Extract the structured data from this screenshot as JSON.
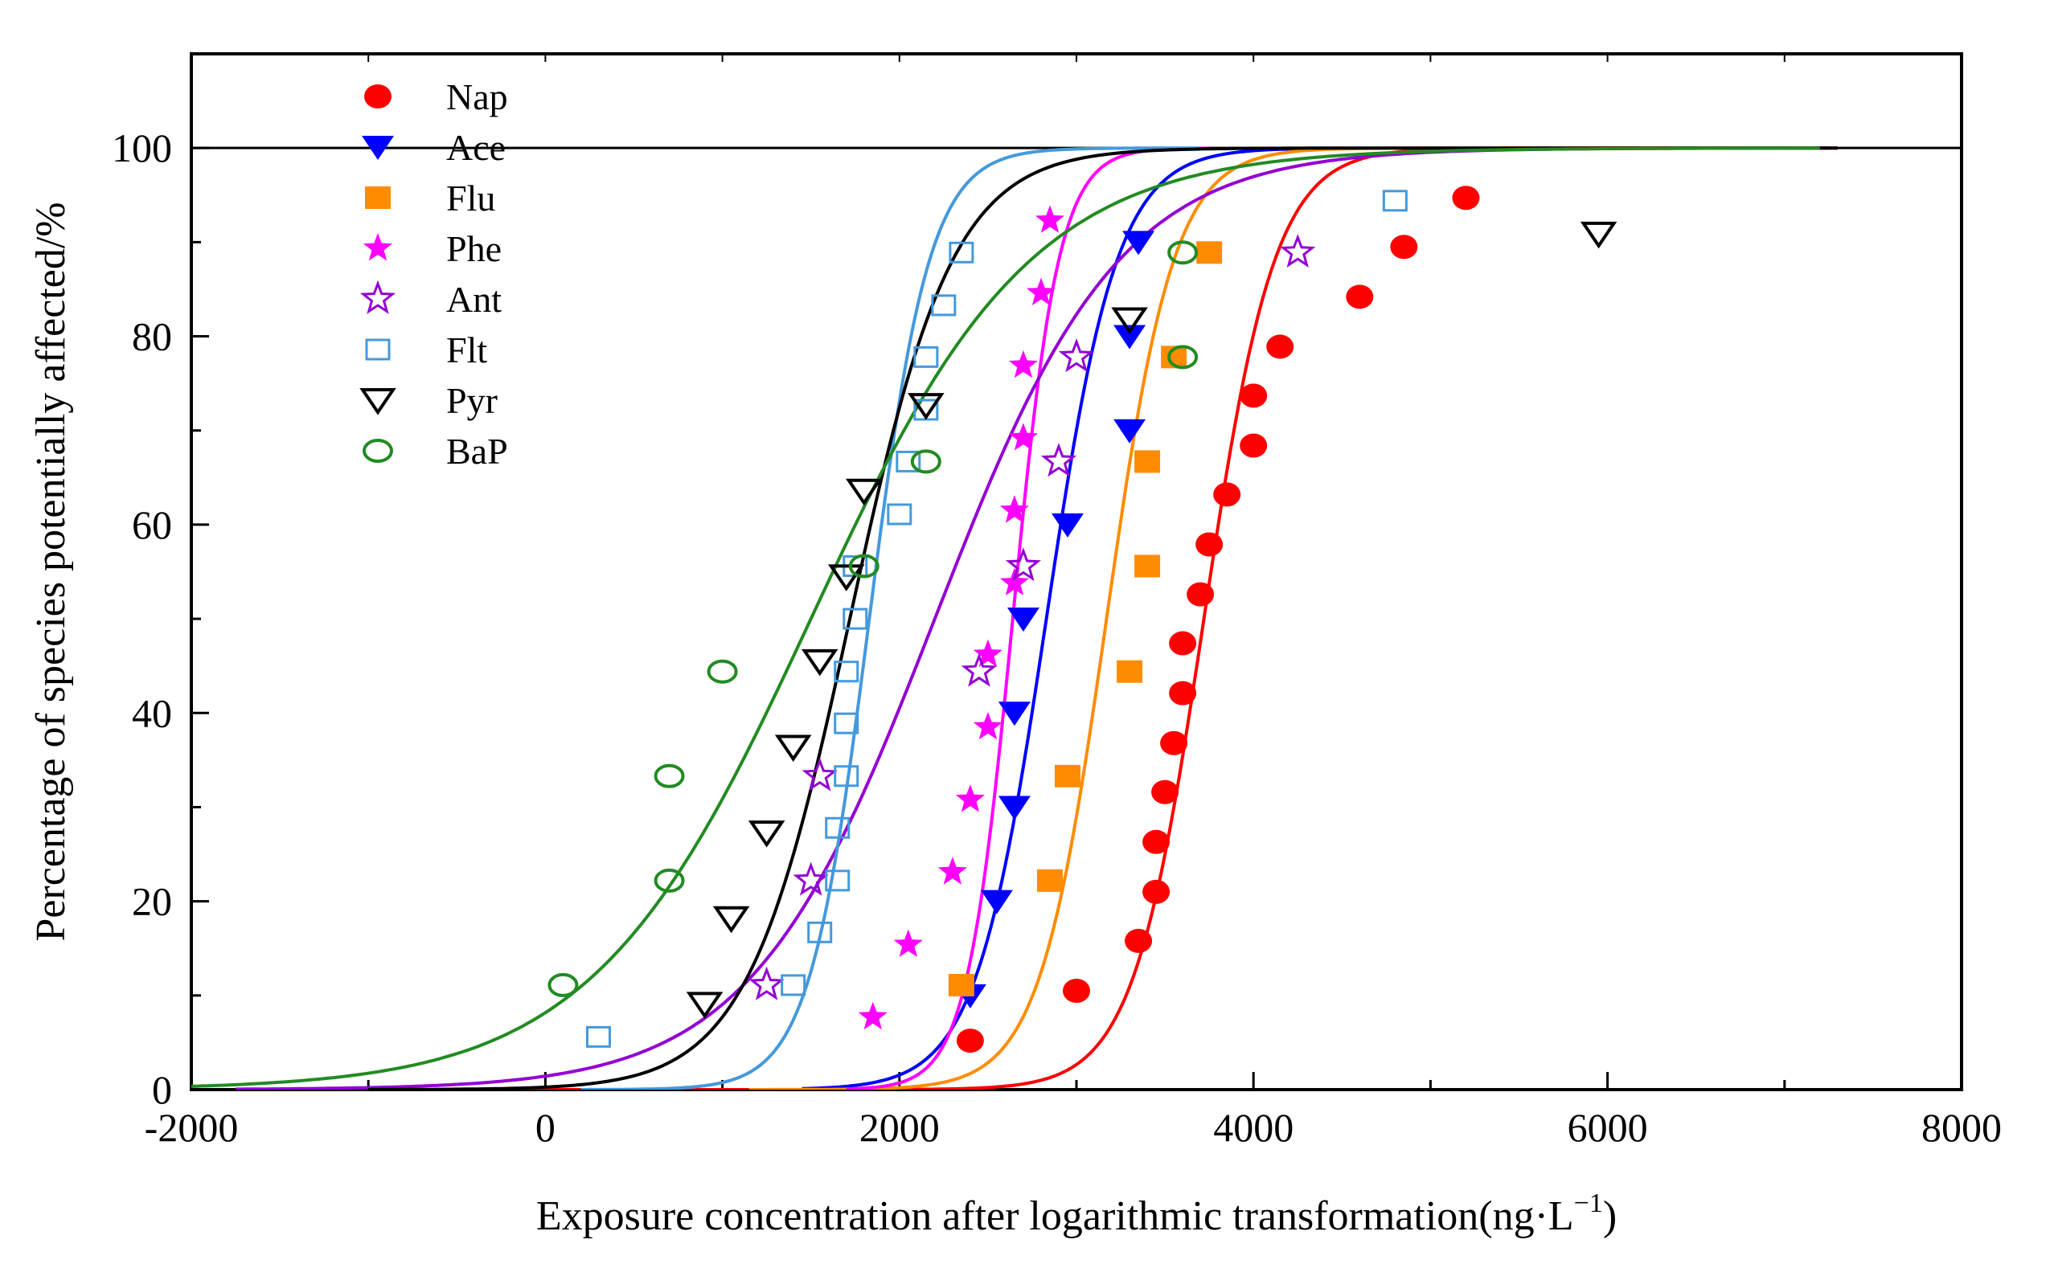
{
  "chart_data": {
    "type": "scatter",
    "title": "",
    "xlabel": "Exposure concentration after logarithmic transformation(ng·L",
    "xlabel_sup": "−1",
    "xlabel_close": ")",
    "ylabel": "Percentage of species potentially affected/%",
    "xlim": [
      -2000,
      8000
    ],
    "ylim": [
      0,
      110
    ],
    "x_ticks": [
      -2000,
      0,
      2000,
      4000,
      6000,
      8000
    ],
    "x_tick_labels": [
      "-2000",
      "0",
      "2000",
      "4000",
      "6000",
      "8000"
    ],
    "y_ticks": [
      0,
      20,
      40,
      60,
      80,
      100
    ],
    "y_tick_labels": [
      "0",
      "20",
      "40",
      "60",
      "80",
      "100"
    ],
    "reference_line_y": 100,
    "legend_position": "top-left",
    "series": [
      {
        "name": "Nap",
        "color": "#ff0000",
        "marker": "filled-circle",
        "fit": {
          "mu": 3720,
          "s": 200,
          "xmin": -500,
          "xmax": 7300
        },
        "points": [
          [
            2400,
            5.2
          ],
          [
            3000,
            10.5
          ],
          [
            3350,
            15.8
          ],
          [
            3450,
            21
          ],
          [
            3450,
            26.3
          ],
          [
            3500,
            31.6
          ],
          [
            3550,
            36.8
          ],
          [
            3600,
            42.1
          ],
          [
            3600,
            47.4
          ],
          [
            3700,
            52.6
          ],
          [
            3750,
            57.9
          ],
          [
            3850,
            63.2
          ],
          [
            4000,
            68.4
          ],
          [
            4000,
            73.7
          ],
          [
            4150,
            78.9
          ],
          [
            4600,
            84.2
          ],
          [
            4850,
            89.5
          ],
          [
            5200,
            94.7
          ]
        ]
      },
      {
        "name": "Ace",
        "color": "#0000ff",
        "marker": "filled-triangle-down",
        "fit": {
          "mu": 2830,
          "s": 200,
          "xmin": 1450,
          "xmax": 4250
        },
        "points": [
          [
            2400,
            10
          ],
          [
            2550,
            20
          ],
          [
            2650,
            30
          ],
          [
            2650,
            40
          ],
          [
            2700,
            50
          ],
          [
            2950,
            60
          ],
          [
            3300,
            70
          ],
          [
            3300,
            80
          ],
          [
            3350,
            90
          ]
        ]
      },
      {
        "name": "Flu",
        "color": "#ff8c00",
        "marker": "filled-square",
        "fit": {
          "mu": 3170,
          "s": 190,
          "xmin": 1150,
          "xmax": 7200
        },
        "points": [
          [
            2350,
            11.1
          ],
          [
            2850,
            22.2
          ],
          [
            2950,
            33.3
          ],
          [
            3300,
            44.4
          ],
          [
            3400,
            55.6
          ],
          [
            3400,
            66.7
          ],
          [
            3550,
            77.8
          ],
          [
            3750,
            88.9
          ]
        ]
      },
      {
        "name": "Phe",
        "color": "#ff00ff",
        "marker": "filled-star",
        "fit": {
          "mu": 2640,
          "s": 130,
          "xmin": 1700,
          "xmax": 3750
        },
        "points": [
          [
            1850,
            7.7
          ],
          [
            2050,
            15.4
          ],
          [
            2300,
            23.1
          ],
          [
            2400,
            30.8
          ],
          [
            2500,
            38.5
          ],
          [
            2500,
            46.2
          ],
          [
            2650,
            53.8
          ],
          [
            2650,
            61.5
          ],
          [
            2700,
            69.2
          ],
          [
            2700,
            76.9
          ],
          [
            2800,
            84.6
          ],
          [
            2850,
            92.3
          ]
        ]
      },
      {
        "name": "Ant",
        "color": "#9400d3",
        "marker": "open-star",
        "fit": {
          "mu": 2200,
          "s": 520,
          "xmin": -1750,
          "xmax": 7250
        },
        "points": [
          [
            1250,
            11.1
          ],
          [
            1500,
            22.2
          ],
          [
            1550,
            33.3
          ],
          [
            2450,
            44.4
          ],
          [
            2700,
            55.6
          ],
          [
            2900,
            66.7
          ],
          [
            3000,
            77.8
          ],
          [
            4250,
            88.9
          ]
        ]
      },
      {
        "name": "Flt",
        "color": "#4499dd",
        "marker": "open-square",
        "fit": {
          "mu": 1830,
          "s": 170,
          "xmin": 200,
          "xmax": 3700
        },
        "points": [
          [
            300,
            5.6
          ],
          [
            1400,
            11.1
          ],
          [
            1550,
            16.7
          ],
          [
            1650,
            22.2
          ],
          [
            1650,
            27.8
          ],
          [
            1700,
            33.3
          ],
          [
            1700,
            38.9
          ],
          [
            1700,
            44.4
          ],
          [
            1750,
            50
          ],
          [
            1750,
            55.6
          ],
          [
            2000,
            61.1
          ],
          [
            2050,
            66.7
          ],
          [
            2150,
            72.2
          ],
          [
            2150,
            77.8
          ],
          [
            2250,
            83.3
          ],
          [
            2350,
            88.9
          ],
          [
            4800,
            94.4
          ]
        ]
      },
      {
        "name": "Pyr",
        "color": "#000000",
        "marker": "open-triangle-down",
        "fit": {
          "mu": 1720,
          "s": 290,
          "xmin": -1000,
          "xmax": 7300
        },
        "points": [
          [
            900,
            9.1
          ],
          [
            1050,
            18.2
          ],
          [
            1250,
            27.3
          ],
          [
            1400,
            36.4
          ],
          [
            1550,
            45.5
          ],
          [
            1700,
            54.5
          ],
          [
            1800,
            63.6
          ],
          [
            2150,
            72.7
          ],
          [
            3300,
            81.8
          ],
          [
            5950,
            90.9
          ]
        ]
      },
      {
        "name": "BaP",
        "color": "#228b22",
        "marker": "open-circle",
        "fit": {
          "mu": 1500,
          "s": 620,
          "xmin": -2000,
          "xmax": 7200
        },
        "points": [
          [
            100,
            11.1
          ],
          [
            700,
            22.2
          ],
          [
            700,
            33.3
          ],
          [
            1000,
            44.4
          ],
          [
            1800,
            55.6
          ],
          [
            2150,
            66.7
          ],
          [
            3600,
            77.8
          ],
          [
            3600,
            88.9
          ]
        ]
      }
    ]
  }
}
